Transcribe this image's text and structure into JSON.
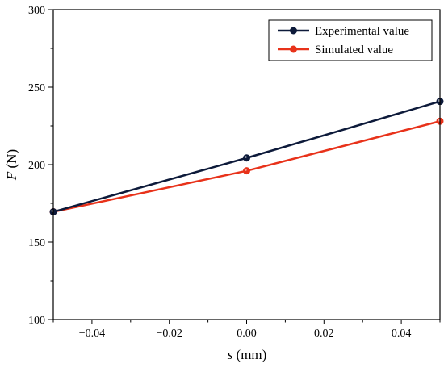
{
  "chart_data": {
    "type": "line",
    "xlabel_italic": "s",
    "xlabel_unit": " (mm)",
    "ylabel_italic": "F",
    "ylabel_unit": " (N)",
    "xlim": [
      -0.05,
      0.05
    ],
    "ylim": [
      100,
      300
    ],
    "xticks": [
      -0.04,
      -0.02,
      0.0,
      0.02,
      0.04
    ],
    "xtick_labels": [
      "−0.04",
      "−0.02",
      "0.00",
      "0.02",
      "0.04"
    ],
    "yticks": [
      100,
      150,
      200,
      250,
      300
    ],
    "ytick_labels": [
      "100",
      "150",
      "200",
      "250",
      "300"
    ],
    "grid": false,
    "legend_position": "top-right",
    "x": [
      -0.05,
      0.0,
      0.05
    ],
    "series": [
      {
        "name": "Experimental value",
        "values": [
          169.5,
          204.3,
          240.8
        ],
        "color": "#0d1a3a"
      },
      {
        "name": "Simulated value",
        "values": [
          169.5,
          196.0,
          228.0
        ],
        "color": "#e8321a"
      }
    ]
  }
}
